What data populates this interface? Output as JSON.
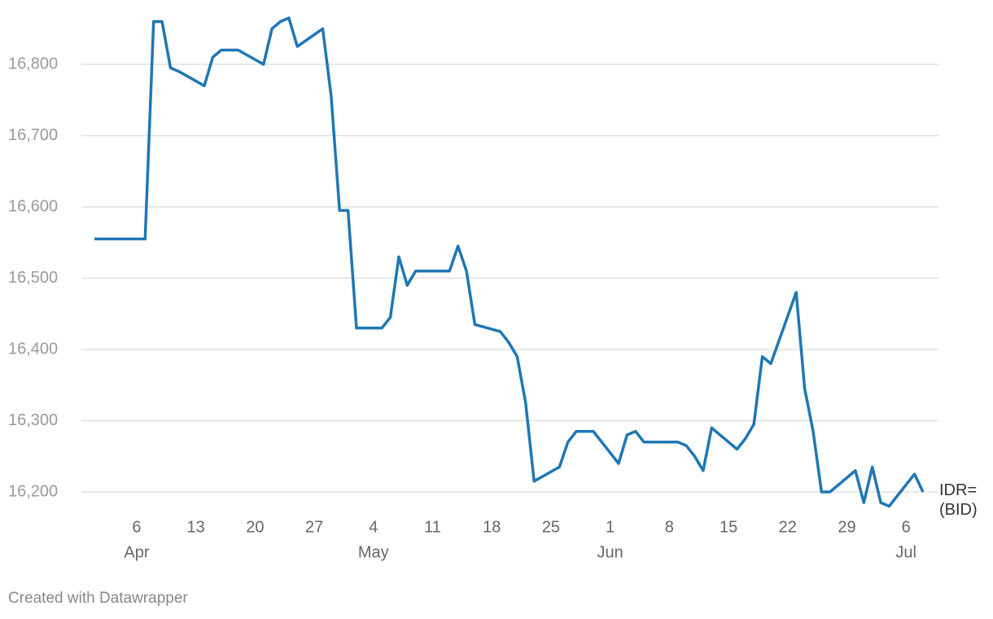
{
  "chart_data": {
    "type": "line",
    "x": [
      "Apr 1",
      "Apr 7",
      "Apr 8",
      "Apr 9",
      "Apr 10",
      "Apr 11",
      "Apr 14",
      "Apr 15",
      "Apr 16",
      "Apr 18",
      "Apr 21",
      "Apr 22",
      "Apr 23",
      "Apr 24",
      "Apr 25",
      "Apr 28",
      "Apr 29",
      "Apr 30",
      "May 1",
      "May 2",
      "May 5",
      "May 6",
      "May 7",
      "May 8",
      "May 9",
      "May 13",
      "May 14",
      "May 15",
      "May 16",
      "May 19",
      "May 20",
      "May 21",
      "May 22",
      "May 23",
      "May 26",
      "May 27",
      "May 28",
      "May 30",
      "Jun 2",
      "Jun 3",
      "Jun 4",
      "Jun 5",
      "Jun 9",
      "Jun 10",
      "Jun 11",
      "Jun 12",
      "Jun 13",
      "Jun 16",
      "Jun 17",
      "Jun 18",
      "Jun 19",
      "Jun 20",
      "Jun 23",
      "Jun 24",
      "Jun 25",
      "Jun 26",
      "Jun 27",
      "Jun 30",
      "Jul 1",
      "Jul 2",
      "Jul 3",
      "Jul 4",
      "Jul 7",
      "Jul 8"
    ],
    "series": [
      {
        "name": "IDR= (BID)",
        "color": "#1f77b4",
        "values": [
          16555,
          16555,
          16860,
          16860,
          16795,
          16790,
          16770,
          16810,
          16820,
          16820,
          16800,
          16850,
          16860,
          16865,
          16825,
          16850,
          16755,
          16595,
          16595,
          16430,
          16430,
          16445,
          16530,
          16490,
          16510,
          16510,
          16545,
          16510,
          16435,
          16425,
          16410,
          16390,
          16325,
          16215,
          16235,
          16270,
          16285,
          16285,
          16240,
          16280,
          16285,
          16270,
          16270,
          16265,
          16250,
          16230,
          16290,
          16260,
          16275,
          16295,
          16390,
          16380,
          16480,
          16345,
          16285,
          16200,
          16200,
          16230,
          16185,
          16235,
          16185,
          16180,
          16225,
          16200
        ]
      }
    ],
    "xlim": [
      "Apr 1",
      "Jul 8"
    ],
    "xticks": [
      {
        "value": "Apr 6",
        "label": "6"
      },
      {
        "value": "Apr 13",
        "label": "13"
      },
      {
        "value": "Apr 20",
        "label": "20"
      },
      {
        "value": "Apr 27",
        "label": "27"
      },
      {
        "value": "May 4",
        "label": "4"
      },
      {
        "value": "May 11",
        "label": "11"
      },
      {
        "value": "May 18",
        "label": "18"
      },
      {
        "value": "May 25",
        "label": "25"
      },
      {
        "value": "Jun 1",
        "label": "1"
      },
      {
        "value": "Jun 8",
        "label": "8"
      },
      {
        "value": "Jun 15",
        "label": "15"
      },
      {
        "value": "Jun 22",
        "label": "22"
      },
      {
        "value": "Jun 29",
        "label": "29"
      },
      {
        "value": "Jul 6",
        "label": "6"
      }
    ],
    "xtick_months": [
      {
        "value": "Apr 6",
        "label": "Apr"
      },
      {
        "value": "May 4",
        "label": "May"
      },
      {
        "value": "Jun 1",
        "label": "Jun"
      },
      {
        "value": "Jul 6",
        "label": "Jul"
      }
    ],
    "ylim": [
      16150,
      16870
    ],
    "yticks": [
      {
        "value": 16200,
        "label": "16,200"
      },
      {
        "value": 16300,
        "label": "16,300"
      },
      {
        "value": 16400,
        "label": "16,400"
      },
      {
        "value": 16500,
        "label": "16,500"
      },
      {
        "value": 16600,
        "label": "16,600"
      },
      {
        "value": 16700,
        "label": "16,700"
      },
      {
        "value": 16800,
        "label": "16,800"
      }
    ],
    "grid": true,
    "footer": "Created with Datawrapper"
  }
}
